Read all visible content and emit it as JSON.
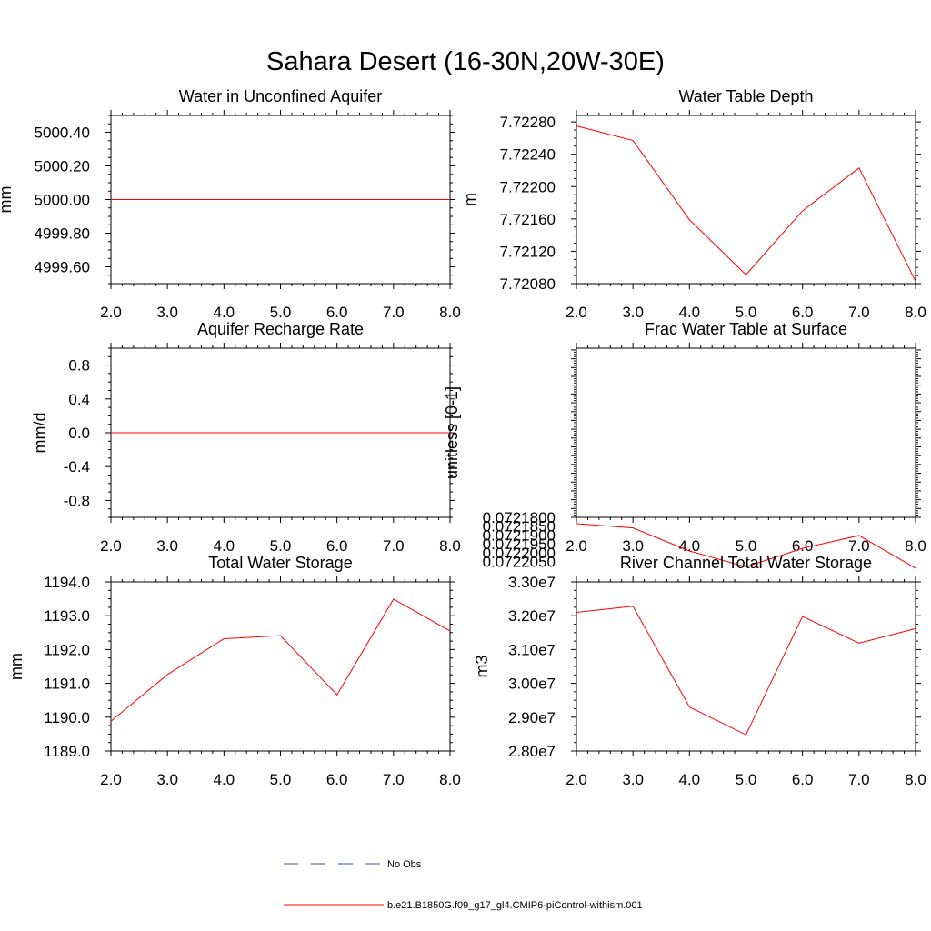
{
  "figure": {
    "title": "Sahara Desert (16-30N,20W-30E)",
    "line_color": "#ff0000",
    "obs_color": "#3b4ba8"
  },
  "legend": {
    "entries": [
      {
        "label": "No Obs",
        "style": "dashed",
        "color": "#3b4ba8"
      },
      {
        "label": "b.e21.B1850G.f09_g17_gl4.CMIP6-piControl-withism.001",
        "style": "solid",
        "color": "#ff0000"
      }
    ]
  },
  "chart_data": [
    {
      "type": "line",
      "title": "Water in Unconfined Aquifer",
      "ylabel": "mm",
      "x": [
        2,
        3,
        4,
        5,
        6,
        7,
        8
      ],
      "xlim": [
        2,
        8
      ],
      "xticks": [
        "2.0",
        "3.0",
        "4.0",
        "5.0",
        "6.0",
        "7.0",
        "8.0"
      ],
      "ylim": [
        4999.5,
        5000.5
      ],
      "yticks": [
        4999.6,
        4999.8,
        5000.0,
        5000.2,
        5000.4
      ],
      "yticklabels": [
        "4999.60",
        "4999.80",
        "5000.00",
        "5000.20",
        "5000.40"
      ],
      "series": [
        {
          "values": [
            5000.0,
            5000.0,
            5000.0,
            5000.0,
            5000.0,
            5000.0,
            5000.0
          ]
        }
      ]
    },
    {
      "type": "line",
      "title": "Water Table Depth",
      "ylabel": "m",
      "x": [
        2,
        3,
        4,
        5,
        6,
        7,
        8
      ],
      "xlim": [
        2,
        8
      ],
      "xticks": [
        "2.0",
        "3.0",
        "4.0",
        "5.0",
        "6.0",
        "7.0",
        "8.0"
      ],
      "ylim": [
        7.7208,
        7.72288
      ],
      "yticks": [
        7.7208,
        7.7212,
        7.7216,
        7.722,
        7.7224,
        7.7228
      ],
      "yticklabels": [
        "7.72080",
        "7.72120",
        "7.72160",
        "7.72200",
        "7.72240",
        "7.72280"
      ],
      "series": [
        {
          "values": [
            7.72275,
            7.72257,
            7.72159,
            7.72091,
            7.7217,
            7.72223,
            7.72083
          ]
        }
      ]
    },
    {
      "type": "line",
      "title": "Aquifer Recharge Rate",
      "ylabel": "mm/d",
      "x": [
        2,
        3,
        4,
        5,
        6,
        7,
        8
      ],
      "xlim": [
        2,
        8
      ],
      "xticks": [
        "2.0",
        "3.0",
        "4.0",
        "5.0",
        "6.0",
        "7.0",
        "8.0"
      ],
      "ylim": [
        -1.0,
        1.0
      ],
      "yticks": [
        -0.8,
        -0.4,
        0.0,
        0.4,
        0.8
      ],
      "yticklabels": [
        "-0.8",
        "-0.4",
        "0.0",
        "0.4",
        "0.8"
      ],
      "series": [
        {
          "values": [
            0,
            0,
            0,
            0,
            0,
            0,
            0
          ]
        }
      ]
    },
    {
      "type": "line",
      "title": "Frac Water Table at Surface",
      "ylabel": "unitless [0-1]",
      "x": [
        2,
        3,
        4,
        5,
        6,
        7,
        8
      ],
      "xlim": [
        2,
        8
      ],
      "xticks": [
        "2.0",
        "3.0",
        "4.0",
        "5.0",
        "6.0",
        "7.0",
        "8.0"
      ],
      "ylim": [
        0.07218,
        0.072084
      ],
      "yticks": [
        0.07218,
        0.072185,
        0.07219,
        0.072195,
        0.0722,
        0.072205
      ],
      "yticklabels": [
        "0.0721800",
        "0.0721850",
        "0.0721900",
        "0.0721950",
        "0.0722000",
        "0.0722050"
      ],
      "series": [
        {
          "values": [
            0.0721836,
            0.072186,
            0.0721991,
            0.0722081,
            0.0721976,
            0.0721903,
            0.0722089
          ]
        }
      ]
    },
    {
      "type": "line",
      "title": "Total Water Storage",
      "ylabel": "mm",
      "x": [
        2,
        3,
        4,
        5,
        6,
        7,
        8
      ],
      "xlim": [
        2,
        8
      ],
      "xticks": [
        "2.0",
        "3.0",
        "4.0",
        "5.0",
        "6.0",
        "7.0",
        "8.0"
      ],
      "ylim": [
        1189.0,
        1194.0
      ],
      "yticks": [
        1189,
        1190,
        1191,
        1192,
        1193,
        1194
      ],
      "yticklabels": [
        "1189.0",
        "1190.0",
        "1191.0",
        "1192.0",
        "1193.0",
        "1194.0"
      ],
      "series": [
        {
          "values": [
            1189.88,
            1191.26,
            1192.32,
            1192.41,
            1190.66,
            1193.49,
            1192.55
          ]
        }
      ]
    },
    {
      "type": "line",
      "title": "River Channel Total Water Storage",
      "ylabel": "m3",
      "x": [
        2,
        3,
        4,
        5,
        6,
        7,
        8
      ],
      "xlim": [
        2,
        8
      ],
      "xticks": [
        "2.0",
        "3.0",
        "4.0",
        "5.0",
        "6.0",
        "7.0",
        "8.0"
      ],
      "ylim": [
        28000000,
        33000000
      ],
      "yticks": [
        28000000,
        29000000,
        30000000,
        31000000,
        32000000,
        33000000
      ],
      "yticklabels": [
        "2.80e7",
        "2.90e7",
        "3.00e7",
        "3.10e7",
        "3.20e7",
        "3.30e7"
      ],
      "series": [
        {
          "values": [
            32100000,
            32280000,
            29300000,
            28480000,
            31980000,
            31190000,
            31620000
          ]
        }
      ]
    }
  ]
}
